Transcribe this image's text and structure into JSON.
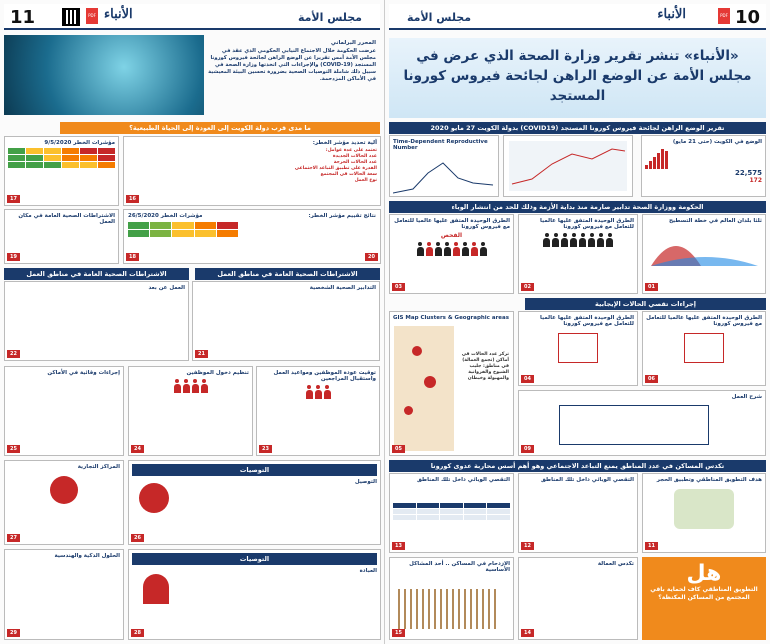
{
  "left_page": {
    "number": "11",
    "section": "مجلس الأمة",
    "logo": "الأنباء",
    "intro": {
      "author": "المحرر البرلماني",
      "text": "عرضت الحكومة خلال الاجتماع النيابي الحكومي الذي عقد في مجلس الأمة أمس تقريرا عن الوضع الراهن لجائحة فيروس كورونا المستجد (COVID-19) والإجراءات التي اتخذتها وزارة الصحة في سبيل ذلك شاملة التوصيات الصحية بضرورة تحسين البيئة المعيشية في الأماكن المزدحمة."
    },
    "q_banner": "ما مدى قرب دولة الكويت إلى العودة إلى الحياة الطبيعية؟",
    "box17": {
      "title": "مؤشرات الخطر 9/5/2020",
      "num": "17"
    },
    "box16": {
      "title": "آلية تحديد مؤشر الخطر:",
      "subtitle": "تعتمد على عدة عوامل:",
      "items": [
        "عدد الحالات الجديدة",
        "عدد الحالات الحرجة",
        "القدرة على تطبيق التباعد الاجتماعي",
        "سعة الحالات في المجتمع",
        "نوع العمل"
      ],
      "num": "16"
    },
    "box19": {
      "title": "الاشتراطات الصحية العامة في مكان العمل",
      "num": "19"
    },
    "box18": {
      "title": "مؤشرات الخطر 26/5/2020",
      "num": "18"
    },
    "box20": {
      "title": "نتائج تقييم مؤشر الخطر:",
      "num": "20"
    },
    "banner_work_left": "الاشتراطات الصحية العامة في مناطق العمل",
    "banner_work_right": "الاشتراطات الصحية العامة في مناطق العمل",
    "box22": {
      "title": "العمل عن بعد",
      "num": "22"
    },
    "box21": {
      "title": "التدابير الصحية الشخصية",
      "num": "21"
    },
    "box25": {
      "title": "إجراءات وقائية في الأماكن",
      "num": "25"
    },
    "box24": {
      "title": "تنظيم دخول الموظفين",
      "num": "24"
    },
    "box23": {
      "title": "توقيت عودة الموظفين ومواعيد العمل واستقبال المراجعين",
      "num": "23"
    },
    "box27": {
      "title": "المراكز التجارية",
      "num": "27"
    },
    "box26_banner": "التوصيات",
    "box26": {
      "title": "التوصيل",
      "num": "26"
    },
    "box29": {
      "title": "الحلول الذكية والهندسية",
      "num": "29"
    },
    "box28_banner": "التوصيات",
    "box28": {
      "title": "العبادة",
      "num": "28"
    }
  },
  "right_page": {
    "number": "10",
    "section": "مجلس الأمة",
    "logo": "الأنباء",
    "headline": "«الأنباء» تنشر تقرير وزارة الصحة الذي عرض في مجلس الأمة عن الوضع الراهن لجائحة فيروس كورونا المستجد",
    "banner_report": "تقرير الوضع الراهن لجائحة فيروس كورونا المستجد (COVID19) بدولة الكويت 27 مايو 2020",
    "chart_rn_title": "Time-Dependent Reproductive Number",
    "box_global_title": "الوضع في الكويت (حتى 21 مايو)",
    "stat_cases": "22,575",
    "stat_deaths": "172",
    "banner_measures": "الحكومة ووزارة الصحة تدابير صارمة منذ بداية الأزمة وذلك للحد من انتشار الوباء",
    "box03": {
      "title": "الطرق الوحيدة المتفق عليها عالميا للتعامل مع فيروس كورونا",
      "label": "الفحص",
      "num": "03"
    },
    "box02": {
      "title": "الطرق الوحيدة المتفق عليها عالميا للتعامل مع فيروس كورونا",
      "num": "02"
    },
    "box01": {
      "title": "ثلثا بلدان العالم في خطة التسطيح",
      "num": "01"
    },
    "banner_cases": "إجراءات تقصي الحالات الإيجابية",
    "box_gis": {
      "title": "GIS Map Clusters & Geographic areas",
      "num": "05"
    },
    "box04": {
      "title": "الطرق الوحيدة المتفق عليها عالميا للتعامل مع فيروس كورونا",
      "num": "04"
    },
    "box06": {
      "title": "الطرق الوحيدة المتفق عليها عالميا للتعامل مع فيروس كورونا",
      "num": "06"
    },
    "gis_text": "تركز عدد الحالات في أماكن (تجمع العمالة) في مناطق: جليب الشيوخ والفروانية والمهبولة وخيطان",
    "box09": {
      "title": "شرح العمل",
      "num": "09"
    },
    "banner_housing": "تكدس المساكن في عدد المناطق يمنع التباعد الاجتماعي وهو أهم أسس محاربة عدوى كورونا",
    "box13": {
      "title": "التقصي الوبائي داخل تلك المناطق",
      "num": "13"
    },
    "box12": {
      "title": "التقصي الوبائي داخل تلك المناطق",
      "num": "12"
    },
    "box11": {
      "title": "هدف التطويق المناطقي وتطبيق الحجر",
      "num": "11"
    },
    "box15": {
      "title": "الازدحام في المساكن .. أحد المشاكل الأساسية",
      "num": "15"
    },
    "box14": {
      "title": "تكدس العمالة",
      "num": "14"
    },
    "cta_big": "هل",
    "cta_text": "التطويق المناطقي كاف لحماية باقي المجتمع من المساكن المكتظة؟"
  }
}
